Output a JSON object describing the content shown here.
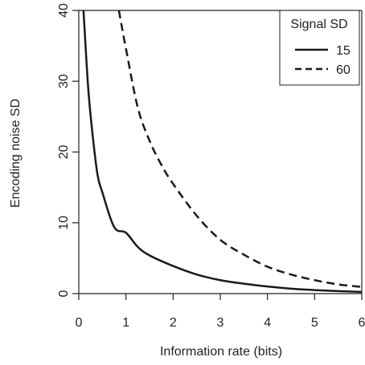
{
  "chart_data": {
    "type": "line",
    "xlabel": "Information rate (bits)",
    "ylabel": "Encoding noise SD",
    "xlim": [
      0,
      6
    ],
    "ylim": [
      0,
      40
    ],
    "xticks": [
      "0",
      "1",
      "2",
      "3",
      "4",
      "5",
      "6"
    ],
    "yticks": [
      "0",
      "10",
      "20",
      "30",
      "40"
    ],
    "grid": false,
    "legend": {
      "title": "Signal SD",
      "position": "top-right"
    },
    "series": [
      {
        "name": "15",
        "line_style": "solid",
        "x": [
          0.1,
          0.2,
          0.3,
          0.4,
          0.5,
          0.75,
          1.0,
          1.25,
          1.5,
          2.0,
          2.5,
          3.0,
          3.5,
          4.0,
          4.5,
          5.0,
          5.5,
          6.0
        ],
        "y": [
          40,
          29,
          22,
          16.7,
          14.3,
          9.4,
          8.6,
          6.6,
          5.4,
          3.9,
          2.7,
          1.9,
          1.4,
          1.0,
          0.7,
          0.5,
          0.35,
          0.24
        ]
      },
      {
        "name": "60",
        "line_style": "dashed",
        "x": [
          0.85,
          1.0,
          1.25,
          1.5,
          1.75,
          2.0,
          2.5,
          3.0,
          3.5,
          4.0,
          4.5,
          5.0,
          5.5,
          6.0
        ],
        "y": [
          40,
          34.6,
          26.3,
          21.6,
          18.2,
          15.5,
          11.0,
          7.6,
          5.5,
          3.8,
          2.7,
          1.9,
          1.3,
          0.94
        ]
      }
    ],
    "colors": {
      "line": "#1a1a1a",
      "axis": "#222222"
    }
  }
}
